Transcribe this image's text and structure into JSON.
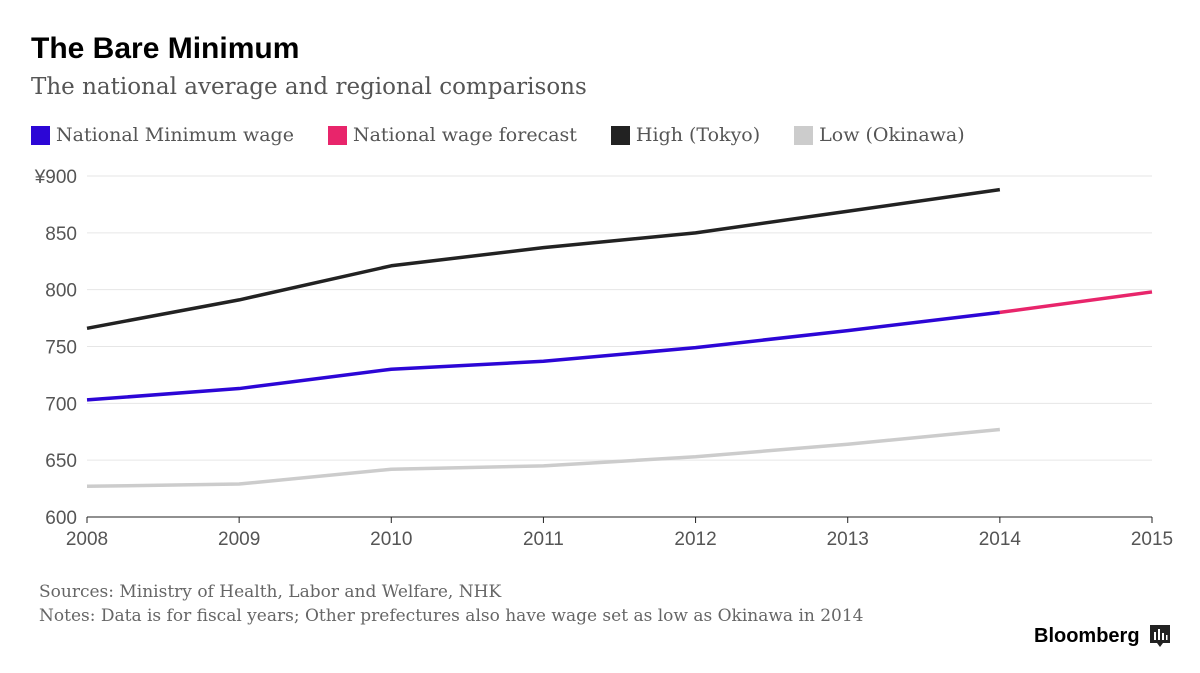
{
  "title": "The Bare Minimum",
  "subtitle": "The national average and regional comparisons",
  "legend": [
    {
      "label": "National Minimum wage",
      "color": "#2c06d6"
    },
    {
      "label": "National wage forecast",
      "color": "#e8256b"
    },
    {
      "label": "High (Tokyo)",
      "color": "#222222"
    },
    {
      "label": "Low (Okinawa)",
      "color": "#cccccc"
    }
  ],
  "footer": {
    "sources": "Sources: Ministry of Health, Labor and Welfare, NHK",
    "notes": "Notes: Data is for fiscal years; Other prefectures also have wage set as low as Okinawa in 2014"
  },
  "brand": {
    "name": "Bloomberg",
    "icon": "bloomberg-chart-icon"
  },
  "chart_data": {
    "type": "line",
    "title": "The Bare Minimum",
    "xlabel": "",
    "ylabel": "",
    "x": [
      2008,
      2009,
      2010,
      2011,
      2012,
      2013,
      2014,
      2015
    ],
    "xlim": [
      2008,
      2015
    ],
    "ylim": [
      600,
      900
    ],
    "y_ticks": [
      600,
      650,
      700,
      750,
      800,
      850,
      900
    ],
    "y_tick_labels": [
      "600",
      "650",
      "700",
      "750",
      "800",
      "850",
      "¥900"
    ],
    "x_tick_labels": [
      "2008",
      "2009",
      "2010",
      "2011",
      "2012",
      "2013",
      "2014",
      "2015"
    ],
    "grid": true,
    "series": [
      {
        "name": "High (Tokyo)",
        "color": "#222222",
        "x": [
          2008,
          2009,
          2010,
          2011,
          2012,
          2013,
          2014
        ],
        "values": [
          766,
          791,
          821,
          837,
          850,
          869,
          888
        ]
      },
      {
        "name": "National Minimum wage",
        "color": "#2c06d6",
        "x": [
          2008,
          2009,
          2010,
          2011,
          2012,
          2013,
          2014
        ],
        "values": [
          703,
          713,
          730,
          737,
          749,
          764,
          780
        ]
      },
      {
        "name": "National wage forecast",
        "color": "#e8256b",
        "x": [
          2014,
          2015
        ],
        "values": [
          780,
          798
        ]
      },
      {
        "name": "Low (Okinawa)",
        "color": "#cccccc",
        "x": [
          2008,
          2009,
          2010,
          2011,
          2012,
          2013,
          2014
        ],
        "values": [
          627,
          629,
          642,
          645,
          653,
          664,
          677
        ]
      }
    ]
  }
}
